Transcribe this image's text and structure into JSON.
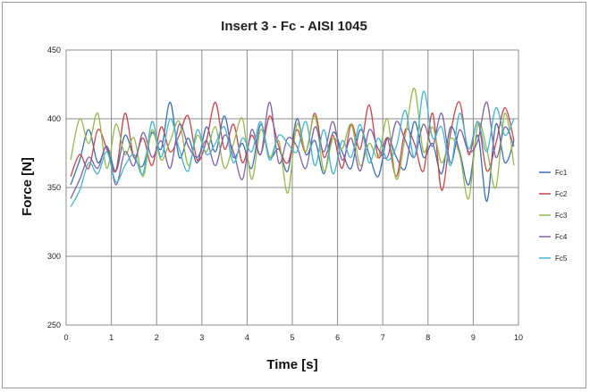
{
  "chart_data": {
    "type": "line",
    "title": "Insert 3 - Fc - AISI 1045",
    "xlabel": "Time [s]",
    "ylabel": "Force [N]",
    "xlim": [
      0,
      10
    ],
    "ylim": [
      250,
      450
    ],
    "xticks": [
      "0",
      "1",
      "2",
      "3",
      "4",
      "5",
      "6",
      "7",
      "8",
      "9",
      "10"
    ],
    "yticks": [
      "250",
      "300",
      "350",
      "400",
      "450"
    ],
    "grid": true,
    "legend_position": "right",
    "x": [
      0.1,
      0.3,
      0.5,
      0.7,
      0.9,
      1.1,
      1.3,
      1.5,
      1.7,
      1.9,
      2.1,
      2.3,
      2.5,
      2.7,
      2.9,
      3.1,
      3.3,
      3.5,
      3.7,
      3.9,
      4.1,
      4.3,
      4.5,
      4.7,
      4.9,
      5.1,
      5.3,
      5.5,
      5.7,
      5.9,
      6.1,
      6.3,
      6.5,
      6.7,
      6.9,
      7.1,
      7.3,
      7.5,
      7.7,
      7.9,
      8.1,
      8.3,
      8.5,
      8.7,
      8.9,
      9.1,
      9.3,
      9.5,
      9.7,
      9.9
    ],
    "series": [
      {
        "name": "Fc1",
        "color": "#3c6eb4",
        "values": [
          352,
          370,
          392,
          368,
          380,
          362,
          388,
          372,
          366,
          390,
          378,
          412,
          372,
          386,
          368,
          394,
          376,
          402,
          372,
          382,
          364,
          396,
          372,
          378,
          362,
          400,
          374,
          384,
          360,
          390,
          376,
          364,
          392,
          374,
          358,
          386,
          372,
          364,
          398,
          372,
          382,
          360,
          394,
          376,
          352,
          388,
          340,
          396,
          368,
          384
        ]
      },
      {
        "name": "Fc2",
        "color": "#c8454a",
        "values": [
          358,
          374,
          364,
          392,
          378,
          362,
          404,
          372,
          386,
          366,
          394,
          376,
          388,
          402,
          370,
          384,
          412,
          378,
          396,
          368,
          388,
          374,
          402,
          380,
          368,
          392,
          376,
          404,
          372,
          388,
          364,
          396,
          378,
          410,
          372,
          386,
          358,
          392,
          382,
          362,
          404,
          348,
          390,
          412,
          374,
          398,
          362,
          382,
          408,
          384
        ]
      },
      {
        "name": "Fc3",
        "color": "#96b84c",
        "values": [
          370,
          400,
          382,
          404,
          364,
          396,
          374,
          386,
          358,
          392,
          370,
          384,
          398,
          366,
          388,
          376,
          394,
          364,
          382,
          400,
          356,
          392,
          372,
          384,
          346,
          396,
          376,
          402,
          362,
          386,
          378,
          396,
          366,
          382,
          372,
          400,
          356,
          388,
          422,
          376,
          394,
          368,
          386,
          374,
          342,
          396,
          378,
          350,
          404,
          366
        ]
      },
      {
        "name": "Fc4",
        "color": "#7e63a8",
        "values": [
          342,
          356,
          372,
          364,
          380,
          352,
          376,
          366,
          390,
          372,
          384,
          364,
          396,
          380,
          372,
          384,
          366,
          388,
          376,
          356,
          392,
          374,
          412,
          368,
          386,
          380,
          364,
          394,
          376,
          398,
          370,
          386,
          362,
          392,
          378,
          372,
          398,
          384,
          372,
          396,
          380,
          404,
          368,
          392,
          376,
          384,
          412,
          372,
          394,
          380
        ]
      },
      {
        "name": "Fc5",
        "color": "#44b4d2",
        "values": [
          336,
          348,
          368,
          360,
          376,
          354,
          366,
          374,
          360,
          398,
          372,
          400,
          378,
          362,
          392,
          374,
          382,
          394,
          368,
          386,
          376,
          398,
          370,
          388,
          382,
          376,
          398,
          366,
          392,
          360,
          384,
          372,
          396,
          368,
          386,
          370,
          380,
          406,
          372,
          420,
          386,
          394,
          366,
          404,
          378,
          398,
          376,
          408,
          388,
          400
        ]
      }
    ]
  }
}
